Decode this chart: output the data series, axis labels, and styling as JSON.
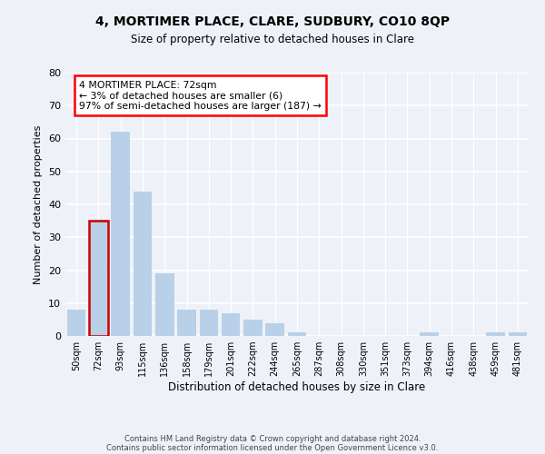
{
  "title": "4, MORTIMER PLACE, CLARE, SUDBURY, CO10 8QP",
  "subtitle": "Size of property relative to detached houses in Clare",
  "xlabel": "Distribution of detached houses by size in Clare",
  "ylabel": "Number of detached properties",
  "bar_color": "#b8d0e8",
  "highlight_color": "#cc0000",
  "highlight_index": 1,
  "categories": [
    "50sqm",
    "72sqm",
    "93sqm",
    "115sqm",
    "136sqm",
    "158sqm",
    "179sqm",
    "201sqm",
    "222sqm",
    "244sqm",
    "265sqm",
    "287sqm",
    "308sqm",
    "330sqm",
    "351sqm",
    "373sqm",
    "394sqm",
    "416sqm",
    "438sqm",
    "459sqm",
    "481sqm"
  ],
  "values": [
    8,
    35,
    62,
    44,
    19,
    8,
    8,
    7,
    5,
    4,
    1,
    0,
    0,
    0,
    0,
    0,
    1,
    0,
    0,
    1,
    1
  ],
  "ylim": [
    0,
    80
  ],
  "yticks": [
    0,
    10,
    20,
    30,
    40,
    50,
    60,
    70,
    80
  ],
  "annotation_lines": [
    "4 MORTIMER PLACE: 72sqm",
    "← 3% of detached houses are smaller (6)",
    "97% of semi-detached houses are larger (187) →"
  ],
  "footer_line1": "Contains HM Land Registry data © Crown copyright and database right 2024.",
  "footer_line2": "Contains public sector information licensed under the Open Government Licence v3.0.",
  "background_color": "#eef2f8",
  "plot_bg_color": "#eef2f8"
}
